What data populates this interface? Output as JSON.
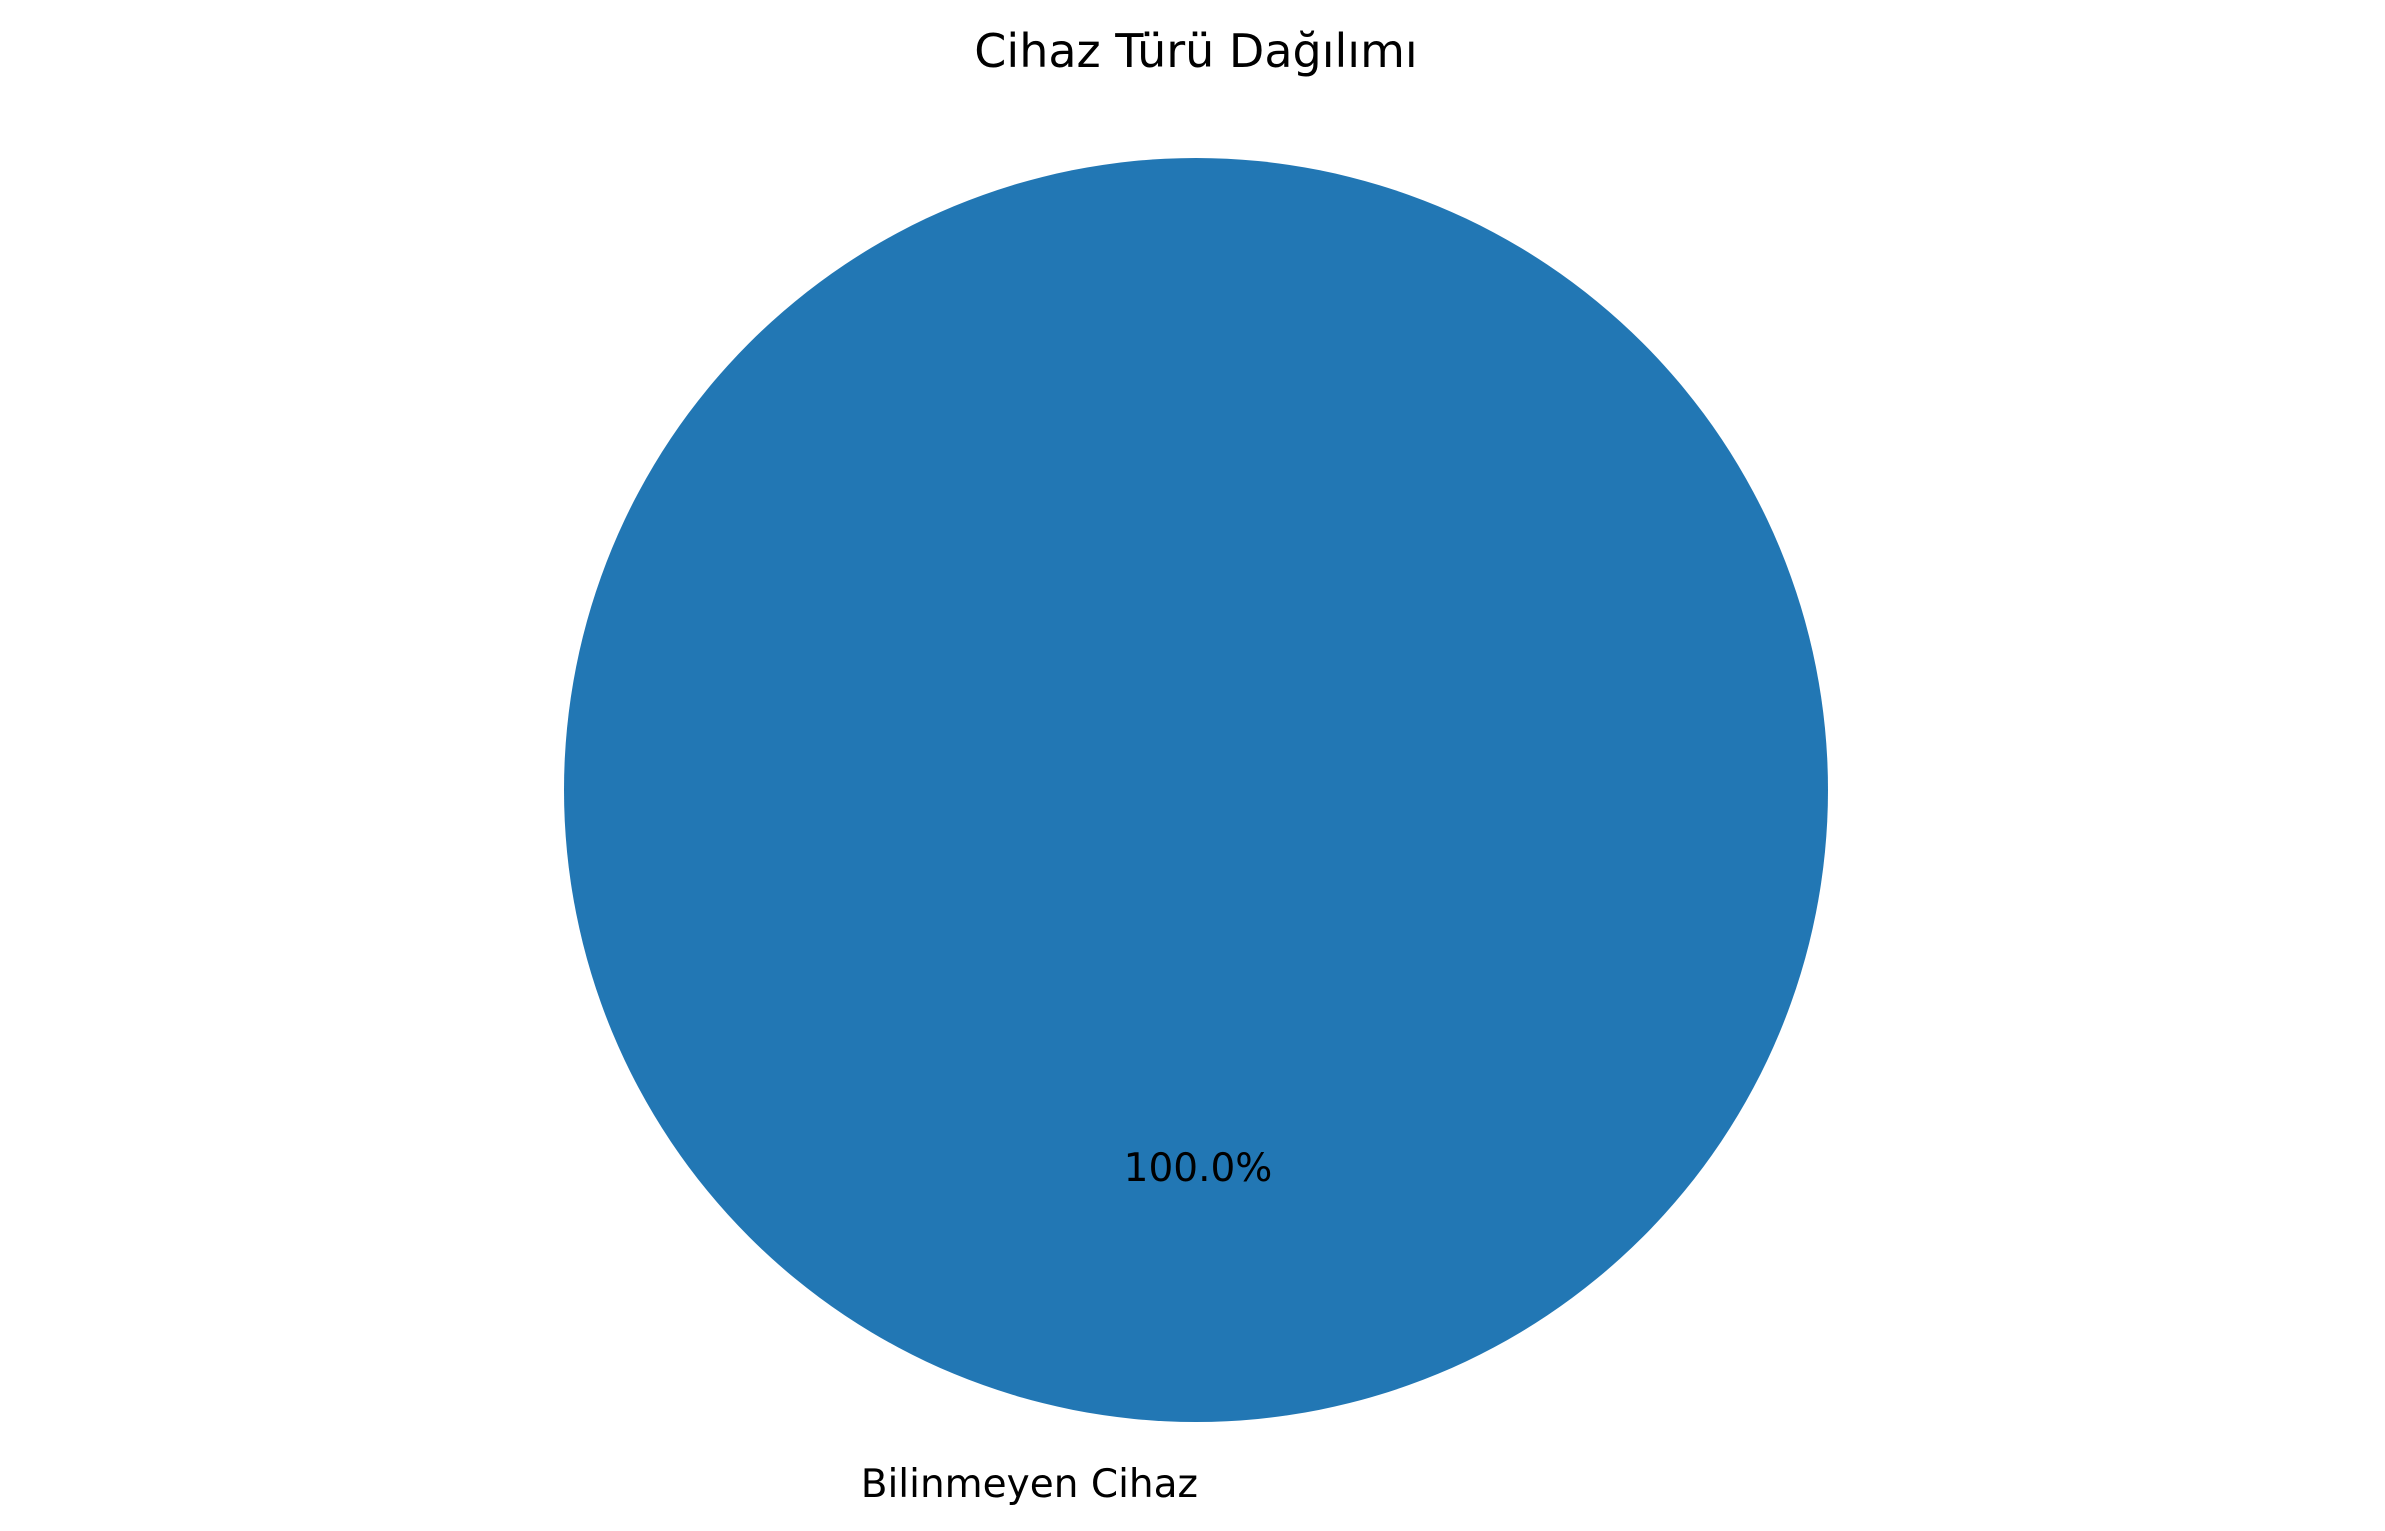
{
  "chart_data": {
    "type": "pie",
    "title": "Cihaz Türü Dağılımı",
    "categories": [
      "Bilinmeyen Cihaz"
    ],
    "values": [
      100
    ],
    "percent_labels": [
      "100.0%"
    ],
    "colors": [
      "#2277b4"
    ],
    "legend": "none"
  }
}
